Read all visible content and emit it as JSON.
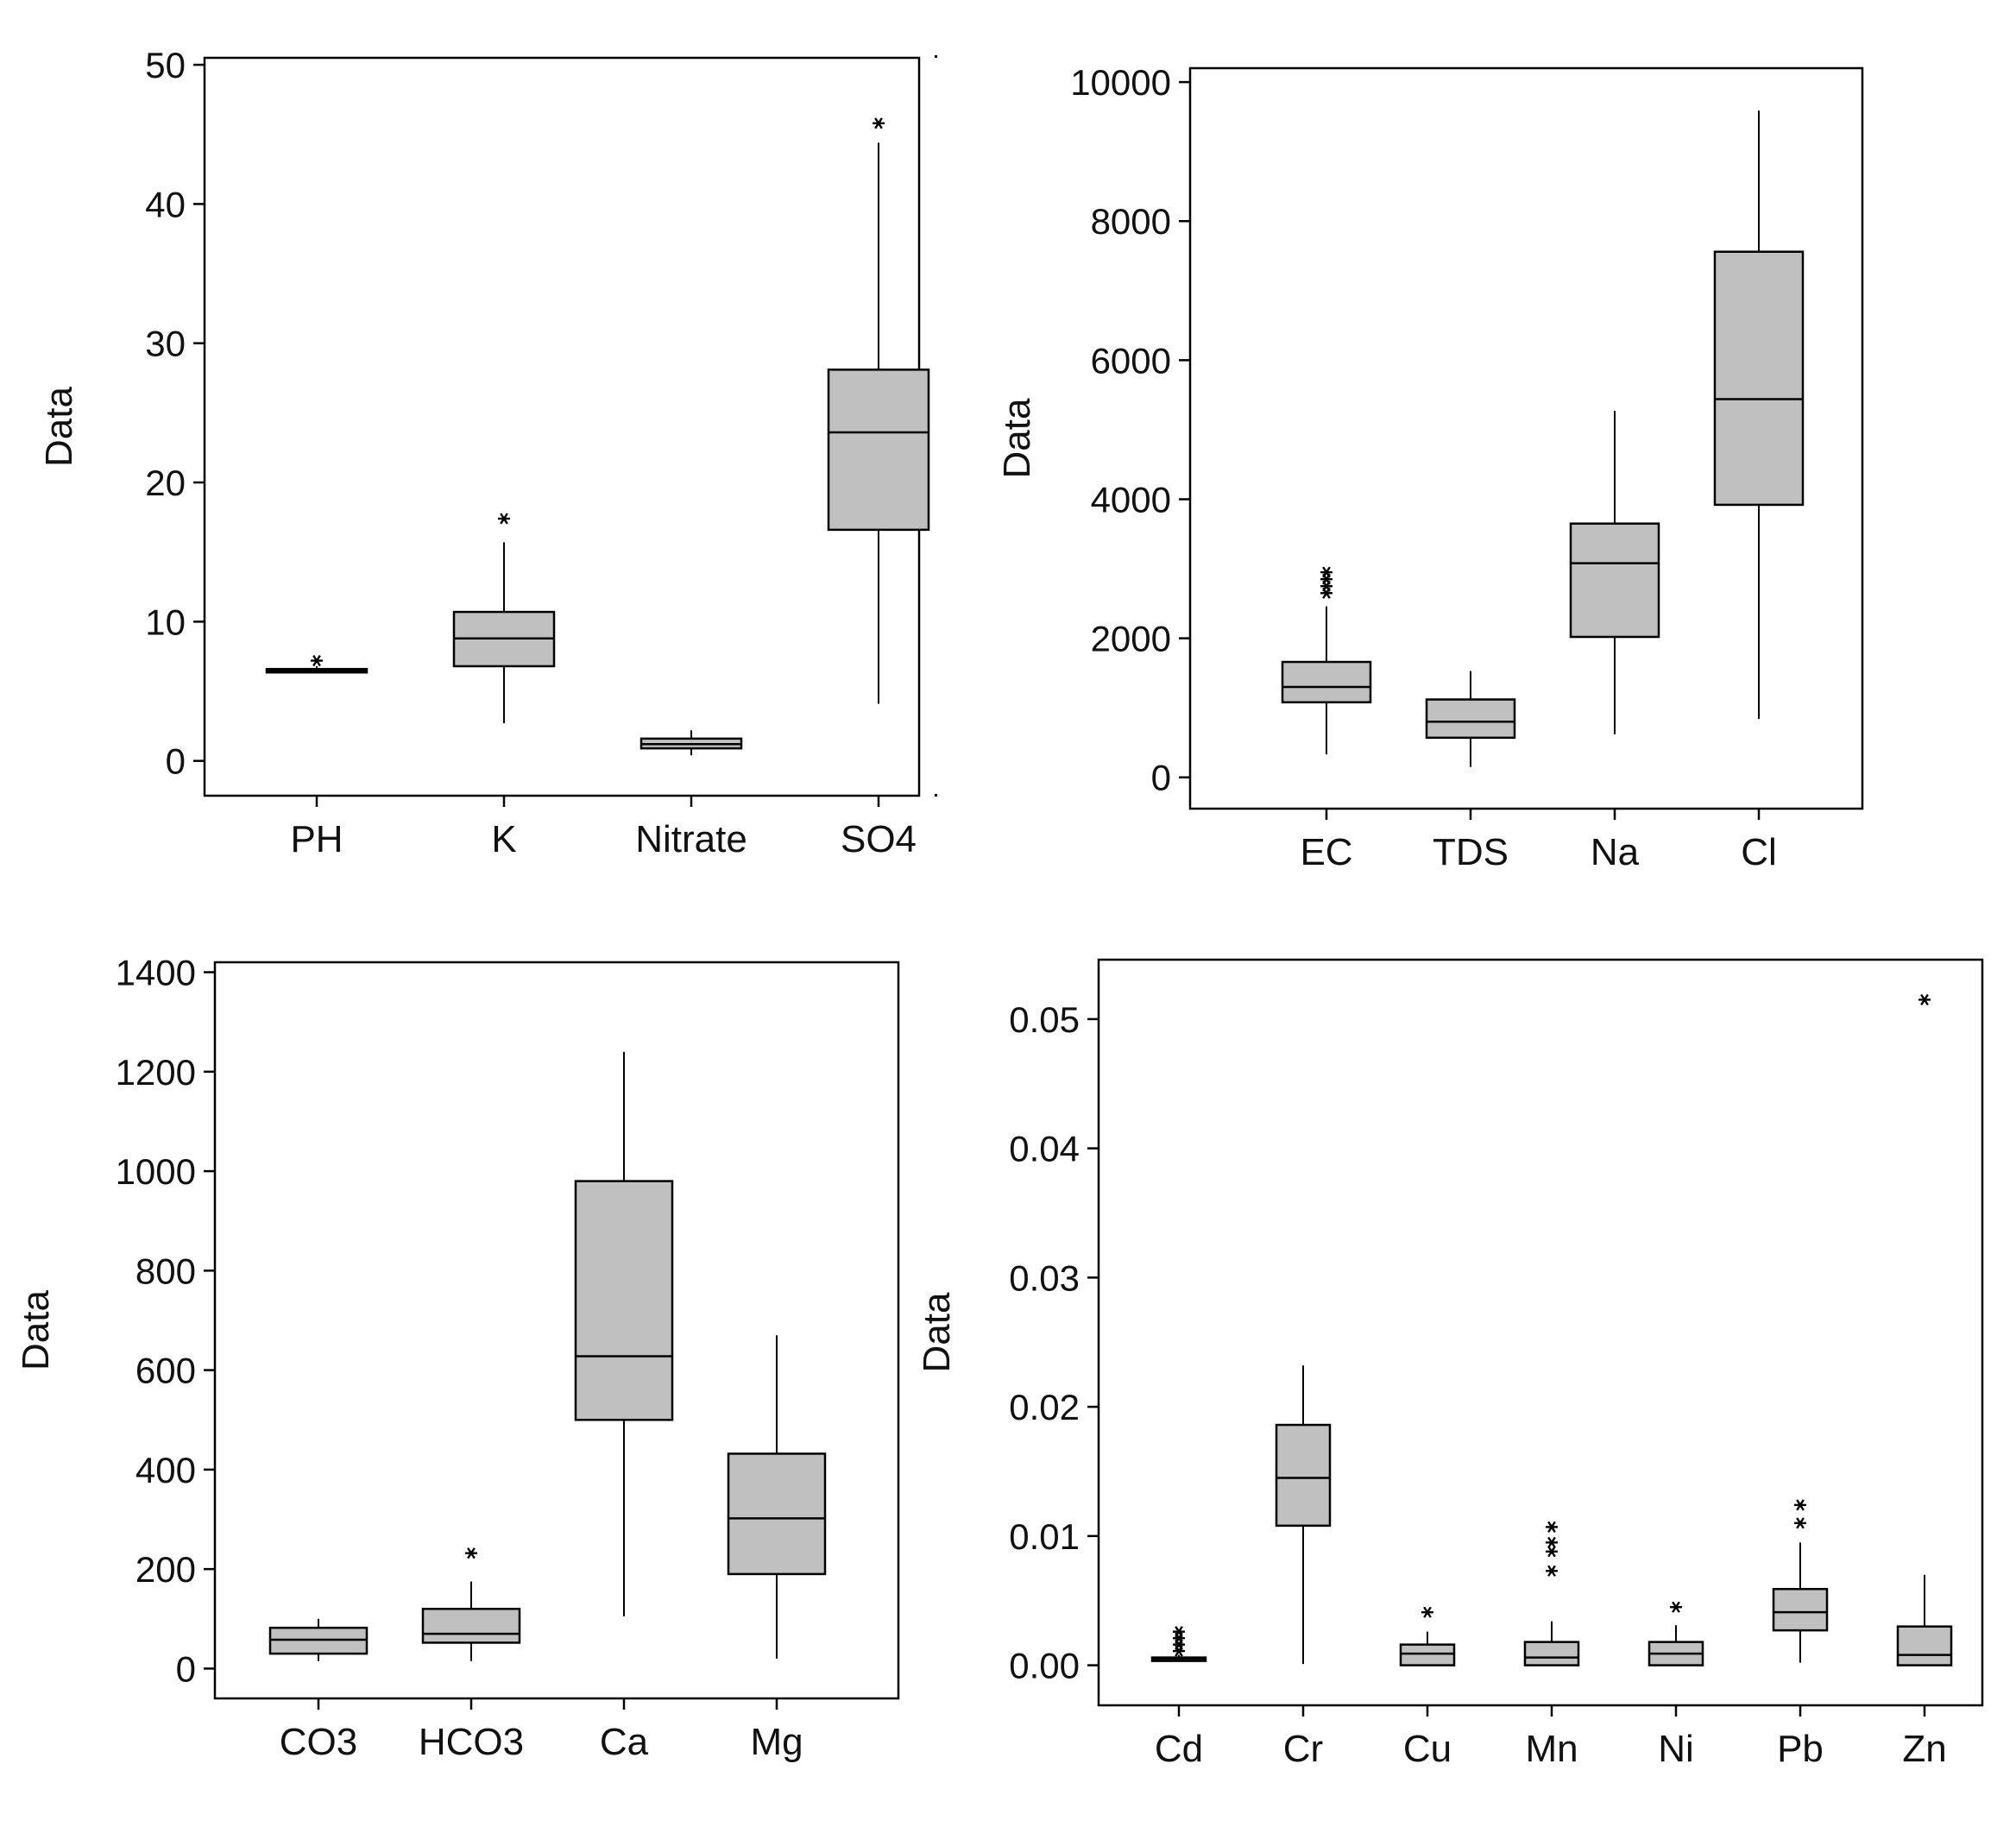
{
  "colors": {
    "box_fill": "#c0c0c0",
    "stroke": "#000000",
    "background": "#ffffff"
  },
  "chart_data": [
    {
      "type": "box",
      "ylabel": "Data",
      "ylim": [
        -2.5,
        50.5
      ],
      "yticks": [
        0,
        10,
        20,
        30,
        40,
        50
      ],
      "tick_labels": [
        "0",
        "10",
        "20",
        "30",
        "40",
        "50"
      ],
      "categories": [
        "PH",
        "K",
        "Nitrate",
        "SO4"
      ],
      "boxes": [
        {
          "name": "PH",
          "whisker_low": 6.3,
          "q1": 6.4,
          "median": 6.5,
          "q3": 6.6,
          "whisker_high": 6.8,
          "outliers": [
            7.2
          ]
        },
        {
          "name": "K",
          "whisker_low": 2.7,
          "q1": 6.8,
          "median": 8.8,
          "q3": 10.7,
          "whisker_high": 15.7,
          "outliers": [
            17.4
          ]
        },
        {
          "name": "Nitrate",
          "whisker_low": 0.4,
          "q1": 0.9,
          "median": 1.2,
          "q3": 1.6,
          "whisker_high": 2.2,
          "outliers": []
        },
        {
          "name": "SO4",
          "whisker_low": 4.1,
          "q1": 16.6,
          "median": 23.6,
          "q3": 28.1,
          "whisker_high": 44.4,
          "outliers": [
            45.8
          ]
        }
      ]
    },
    {
      "type": "box",
      "ylabel": "Data",
      "ylim": [
        -450,
        10200
      ],
      "yticks": [
        0,
        2000,
        4000,
        6000,
        8000,
        10000
      ],
      "tick_labels": [
        "0",
        "2000",
        "4000",
        "6000",
        "8000",
        "10000"
      ],
      "categories": [
        "EC",
        "TDS",
        "Na",
        "Cl"
      ],
      "boxes": [
        {
          "name": "EC",
          "whisker_low": 330,
          "q1": 1080,
          "median": 1300,
          "q3": 1660,
          "whisker_high": 2460,
          "outliers": [
            2650,
            2750,
            2850,
            2950
          ]
        },
        {
          "name": "TDS",
          "whisker_low": 150,
          "q1": 570,
          "median": 800,
          "q3": 1120,
          "whisker_high": 1530,
          "outliers": []
        },
        {
          "name": "Na",
          "whisker_low": 620,
          "q1": 2020,
          "median": 3080,
          "q3": 3650,
          "whisker_high": 5270,
          "outliers": []
        },
        {
          "name": "Cl",
          "whisker_low": 840,
          "q1": 3920,
          "median": 5440,
          "q3": 7560,
          "whisker_high": 9590,
          "outliers": []
        }
      ]
    },
    {
      "type": "box",
      "ylabel": "Data",
      "ylim": [
        -60,
        1420
      ],
      "yticks": [
        0,
        200,
        400,
        600,
        800,
        1000,
        1200,
        1400
      ],
      "tick_labels": [
        "0",
        "200",
        "400",
        "600",
        "800",
        "1000",
        "1200",
        "1400"
      ],
      "categories": [
        "CO3",
        "HCO3",
        "Ca",
        "Mg"
      ],
      "boxes": [
        {
          "name": "CO3",
          "whisker_low": 15,
          "q1": 30,
          "median": 58,
          "q3": 82,
          "whisker_high": 100,
          "outliers": []
        },
        {
          "name": "HCO3",
          "whisker_low": 15,
          "q1": 52,
          "median": 70,
          "q3": 120,
          "whisker_high": 175,
          "outliers": [
            232
          ]
        },
        {
          "name": "Ca",
          "whisker_low": 105,
          "q1": 500,
          "median": 628,
          "q3": 980,
          "whisker_high": 1240,
          "outliers": []
        },
        {
          "name": "Mg",
          "whisker_low": 20,
          "q1": 190,
          "median": 302,
          "q3": 432,
          "whisker_high": 670,
          "outliers": []
        }
      ]
    },
    {
      "type": "box",
      "ylabel": "Data",
      "ylim": [
        -0.0031,
        0.0546
      ],
      "yticks": [
        0,
        0.01,
        0.02,
        0.03,
        0.04,
        0.05
      ],
      "tick_labels": [
        "0.00",
        "0.01",
        "0.02",
        "0.03",
        "0.04",
        "0.05"
      ],
      "categories": [
        "Cd",
        "Cr",
        "Cu",
        "Mn",
        "Ni",
        "Pb",
        "Zn"
      ],
      "boxes": [
        {
          "name": "Cd",
          "whisker_low": 0.0003,
          "q1": 0.0004,
          "median": 0.0005,
          "q3": 0.0006,
          "whisker_high": 0.0008,
          "outliers": [
            0.0011,
            0.0016,
            0.0021,
            0.0026
          ]
        },
        {
          "name": "Cr",
          "whisker_low": 0.0001,
          "q1": 0.0108,
          "median": 0.0145,
          "q3": 0.0186,
          "whisker_high": 0.0232,
          "outliers": []
        },
        {
          "name": "Cu",
          "whisker_low": 0.0,
          "q1": 0.0,
          "median": 0.0009,
          "q3": 0.0016,
          "whisker_high": 0.0026,
          "outliers": [
            0.0041
          ]
        },
        {
          "name": "Mn",
          "whisker_low": 0.0,
          "q1": 0.0,
          "median": 0.0006,
          "q3": 0.0018,
          "whisker_high": 0.0034,
          "outliers": [
            0.0073,
            0.0088,
            0.0095,
            0.0107
          ]
        },
        {
          "name": "Ni",
          "whisker_low": 0.0,
          "q1": 0.0,
          "median": 0.0009,
          "q3": 0.0018,
          "whisker_high": 0.0031,
          "outliers": [
            0.0045
          ]
        },
        {
          "name": "Pb",
          "whisker_low": 0.0002,
          "q1": 0.0027,
          "median": 0.0041,
          "q3": 0.0059,
          "whisker_high": 0.0095,
          "outliers": [
            0.011,
            0.0124
          ]
        },
        {
          "name": "Zn",
          "whisker_low": 0.0,
          "q1": 0.0,
          "median": 0.0008,
          "q3": 0.003,
          "whisker_high": 0.007,
          "outliers": [
            0.0515
          ]
        }
      ]
    }
  ]
}
